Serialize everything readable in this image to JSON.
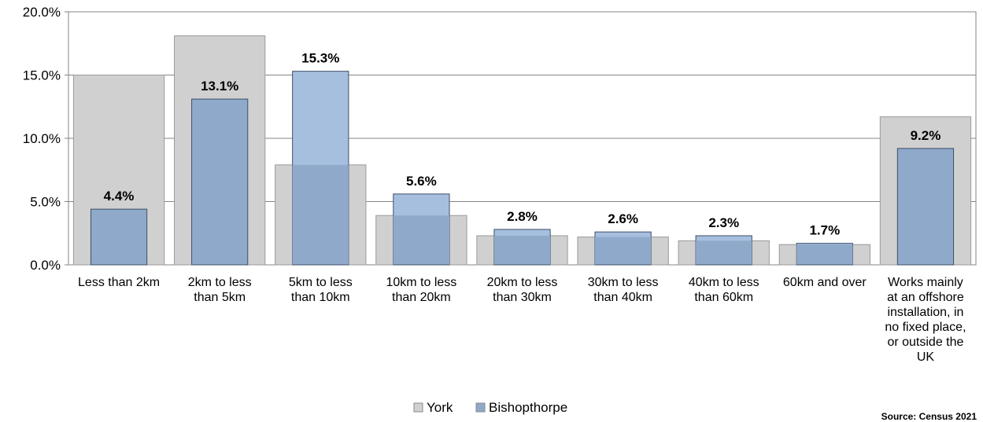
{
  "chart_data": {
    "type": "bar",
    "categories": [
      [
        "Less than 2km"
      ],
      [
        "2km to less",
        "than 5km"
      ],
      [
        "5km to less",
        "than 10km"
      ],
      [
        "10km to less",
        "than 20km"
      ],
      [
        "20km to less",
        "than 30km"
      ],
      [
        "30km to less",
        "than 40km"
      ],
      [
        "40km to less",
        "than 60km"
      ],
      [
        "60km and over"
      ],
      [
        "Works mainly",
        "at an offshore",
        "installation, in",
        "no fixed place,",
        "or outside the",
        "UK"
      ]
    ],
    "series": [
      {
        "name": "York",
        "values": [
          15.0,
          18.1,
          7.9,
          3.9,
          2.3,
          2.2,
          1.9,
          1.6,
          11.7
        ]
      },
      {
        "name": "Bishopthorpe",
        "values": [
          4.4,
          13.1,
          15.3,
          5.6,
          2.8,
          2.6,
          2.3,
          1.7,
          9.2
        ]
      }
    ],
    "data_labels": [
      "4.4%",
      "13.1%",
      "15.3%",
      "5.6%",
      "2.8%",
      "2.6%",
      "2.3%",
      "1.7%",
      "9.2%"
    ],
    "y_ticks": [
      "0.0%",
      "5.0%",
      "10.0%",
      "15.0%",
      "20.0%"
    ],
    "ylim": [
      0,
      20
    ],
    "grid": true,
    "legend_position": "bottom",
    "colors": {
      "York": "#d0d0d0",
      "Bishopthorpe": "#8fa9ca",
      "Bishopthorpe_overlap_top": "#a7bfdf",
      "grid": "#868686"
    }
  },
  "source_note": "Source: Census 2021"
}
